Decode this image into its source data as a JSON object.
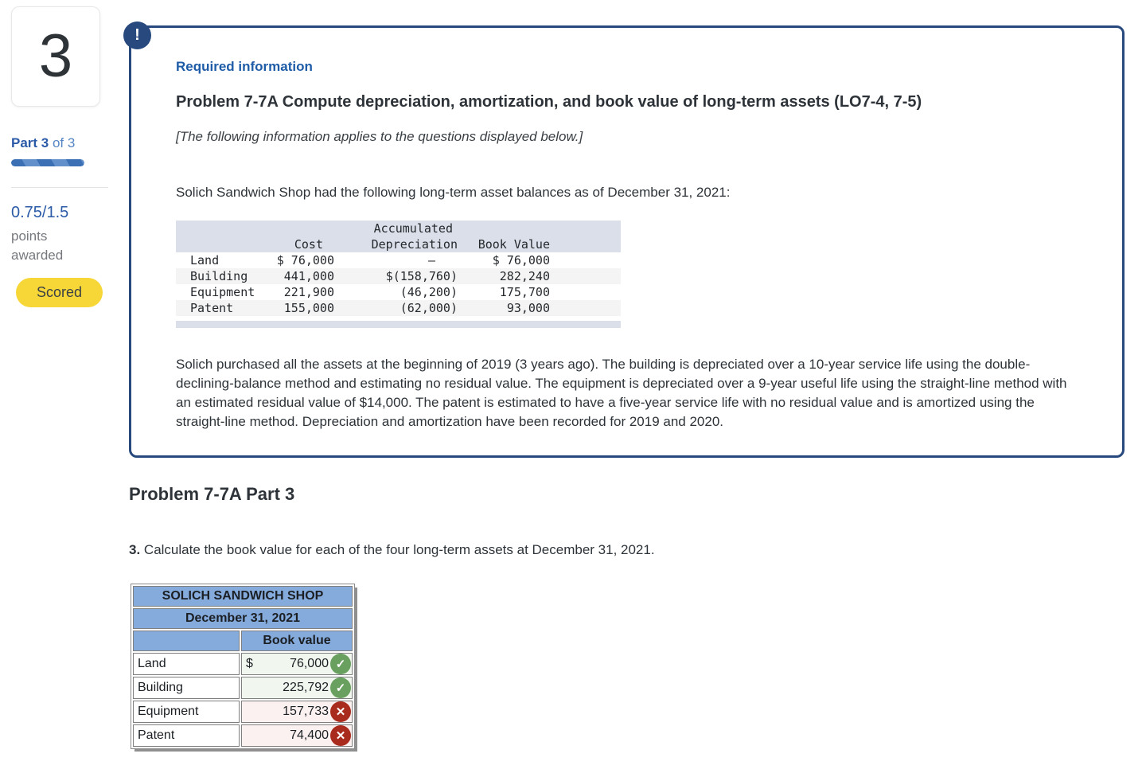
{
  "sidebar": {
    "question_number": "3",
    "part_label_bold": "Part 3",
    "part_label_rest": " of 3",
    "progress_percent": 100,
    "points_value": "0.75/1.5",
    "points_label_line1": "points",
    "points_label_line2": "awarded",
    "scored_label": "Scored"
  },
  "info_box": {
    "alert_glyph": "!",
    "required_label": "Required information",
    "title": "Problem 7-7A Compute depreciation, amortization, and book value of long-term assets (LO7-4, 7-5)",
    "applies_note": "[The following information applies to the questions displayed below.]",
    "intro": "Solich Sandwich Shop had the following long-term asset balances as of December 31, 2021:",
    "asset_table": {
      "headers": {
        "accum_line1": "Accumulated",
        "cost": "Cost",
        "accum_line2": "Depreciation",
        "book_value": "Book Value"
      },
      "rows": [
        {
          "name": "Land",
          "cost": "$ 76,000",
          "accum": "–",
          "book": "$ 76,000"
        },
        {
          "name": "Building",
          "cost": "441,000",
          "accum": "$(158,760)",
          "book": "282,240"
        },
        {
          "name": "Equipment",
          "cost": "221,900",
          "accum": "(46,200)",
          "book": "175,700"
        },
        {
          "name": "Patent",
          "cost": "155,000",
          "accum": "(62,000)",
          "book": "93,000"
        }
      ]
    },
    "detail": "Solich purchased all the assets at the beginning of 2019 (3 years ago). The building is depreciated over a 10-year service life using the double-declining-balance method and estimating no residual value. The equipment is depreciated over a 9-year useful life using the straight-line method with an estimated residual value of $14,000. The patent is estimated to have a five-year service life with no residual value and is amortized using the straight-line method. Depreciation and amortization have been recorded for 2019 and 2020."
  },
  "part_section": {
    "heading": "Problem 7-7A Part 3",
    "question_number": "3.",
    "question_text": " Calculate the book value for each of the four long-term assets at December 31, 2021."
  },
  "answer_table": {
    "title": "SOLICH SANDWICH SHOP",
    "subtitle": "December 31, 2021",
    "value_header": "Book value",
    "rows": [
      {
        "name": "Land",
        "currency": "$",
        "value": "76,000",
        "status": "correct"
      },
      {
        "name": "Building",
        "currency": "",
        "value": "225,792",
        "status": "correct"
      },
      {
        "name": "Equipment",
        "currency": "",
        "value": "157,733",
        "status": "incorrect"
      },
      {
        "name": "Patent",
        "currency": "",
        "value": "74,400",
        "status": "incorrect"
      }
    ]
  },
  "icons": {
    "correct_glyph": "✓",
    "correct_name": "check-icon",
    "incorrect_glyph": "✕",
    "incorrect_name": "x-icon"
  },
  "colors": {
    "panel_border_navy": "#27497e",
    "required_blue": "#1f5ca8",
    "sidebar_blue": "#2b5aa7",
    "scored_yellow": "#f6d737",
    "answer_header_blue": "#85abdd",
    "correct_green": "#69a05f",
    "incorrect_red": "#a92b1d",
    "correct_cell_bg": "#f1f7ef",
    "incorrect_cell_bg": "#fbf1f0",
    "asset_table_header_bg": "#dbdfe9"
  }
}
